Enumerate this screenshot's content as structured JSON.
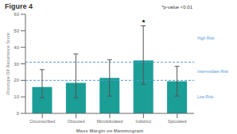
{
  "chart_data": {
    "type": "bar",
    "title": "Figure 4",
    "categories": [
      "Circumscribed",
      "Obscured",
      "Microlobulated",
      "Indistinct",
      "Spiculated"
    ],
    "values": [
      16.0,
      18.5,
      21.5,
      32.0,
      19.5
    ],
    "errors_upper": [
      10.5,
      17.5,
      11.0,
      21.0,
      9.0
    ],
    "errors_lower": [
      6.5,
      9.0,
      11.0,
      14.5,
      9.0
    ],
    "color": "#1a9e96",
    "xlabel": "Mass Margin on Mammogram",
    "ylabel": "Oncotype DX Recurrence Score",
    "ylim": [
      0,
      60
    ],
    "yticks": [
      0,
      10,
      20,
      30,
      40,
      50,
      60
    ],
    "grid": false,
    "reference_lines": [
      {
        "value": 20,
        "color": "#5b9bd5"
      },
      {
        "value": 31,
        "color": "#5b9bd5"
      }
    ],
    "risk_labels": [
      {
        "label": "Low Risk",
        "color": "#5b9bd5"
      },
      {
        "label": "Intermediate Risk",
        "color": "#5b9bd5"
      },
      {
        "label": "High Risk",
        "color": "#5b9bd5"
      }
    ],
    "annotations": [
      {
        "text": "*",
        "category": "Indistinct"
      },
      {
        "text": "*p-value <0.01",
        "color": "#333333"
      }
    ]
  }
}
